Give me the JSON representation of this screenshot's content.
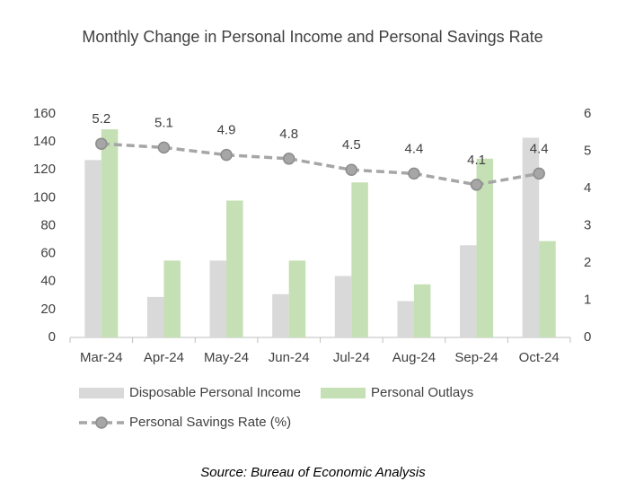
{
  "chart_data": {
    "type": "combo",
    "title": "Monthly Change in Personal Income and Personal Savings Rate",
    "source": "Source: Bureau of Economic Analysis",
    "categories": [
      "Mar-24",
      "Apr-24",
      "May-24",
      "Jun-24",
      "Jul-24",
      "Aug-24",
      "Sep-24",
      "Oct-24"
    ],
    "series": [
      {
        "name": "Disposable Personal Income",
        "type": "bar",
        "color": "#d9d9d9",
        "values": [
          127,
          29,
          55,
          31,
          44,
          26,
          66,
          143
        ]
      },
      {
        "name": "Personal Outlays",
        "type": "bar",
        "color": "#c5e0b4",
        "values": [
          149,
          55,
          98,
          55,
          111,
          38,
          128,
          69
        ]
      },
      {
        "name": "Personal Savings Rate (%)",
        "type": "line",
        "axis": "y2",
        "color": "#a6a6a6",
        "values": [
          5.2,
          5.1,
          4.9,
          4.8,
          4.5,
          4.4,
          4.1,
          4.4
        ]
      }
    ],
    "ylim": [
      0,
      160
    ],
    "yticks": [
      0,
      20,
      40,
      60,
      80,
      100,
      120,
      140,
      160
    ],
    "y2lim": [
      0,
      6
    ],
    "y2ticks": [
      0,
      1,
      2,
      3,
      4,
      5,
      6
    ],
    "grid": false
  }
}
